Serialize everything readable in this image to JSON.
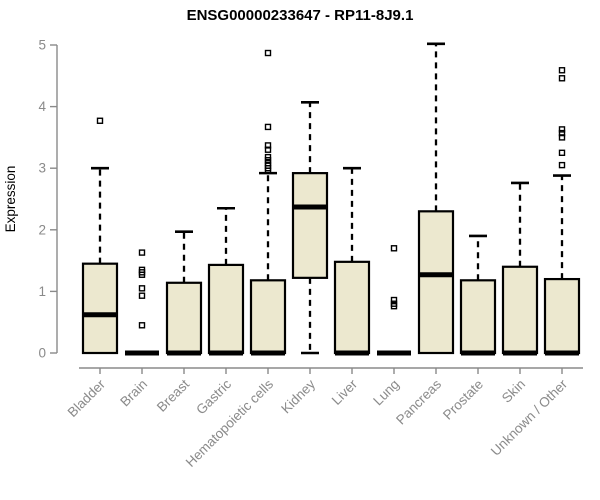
{
  "figure": {
    "background": "#ffffff"
  },
  "chart_data": {
    "type": "boxplot",
    "title": "ENSG00000233647 - RP11-8J9.1",
    "ylabel": "Expression",
    "xlabel": "",
    "ylim": [
      0,
      5
    ],
    "yticks": [
      0,
      1,
      2,
      3,
      4,
      5
    ],
    "grid": false,
    "legend_position": "none",
    "colors": {
      "box_fill": "#ece8cf",
      "box_stroke": "#000000",
      "median": "#000000",
      "whisker": "#000000",
      "outlier": "#000000",
      "axis": "#8a8a8a",
      "tick_label": "#8a8a8a",
      "title": "#000000"
    },
    "categories": [
      "Bladder",
      "Brain",
      "Breast",
      "Gastric",
      "Hematopoietic cells",
      "Kidney",
      "Liver",
      "Lung",
      "Pancreas",
      "Prostate",
      "Skin",
      "Unknown / Other"
    ],
    "series": [
      {
        "name": "Bladder",
        "q1": 0,
        "median": 0.62,
        "q3": 1.45,
        "whisker_low": 0,
        "whisker_high": 3.0,
        "outliers": [
          3.77
        ]
      },
      {
        "name": "Brain",
        "q1": 0,
        "median": 0,
        "q3": 0,
        "whisker_low": 0,
        "whisker_high": 0,
        "outliers": [
          1.63,
          1.35,
          1.31,
          1.27,
          1.05,
          0.93,
          0.45
        ]
      },
      {
        "name": "Breast",
        "q1": 0,
        "median": 0,
        "q3": 1.14,
        "whisker_low": 0,
        "whisker_high": 1.97,
        "outliers": []
      },
      {
        "name": "Gastric",
        "q1": 0,
        "median": 0,
        "q3": 1.43,
        "whisker_low": 0,
        "whisker_high": 2.35,
        "outliers": []
      },
      {
        "name": "Hematopoietic cells",
        "q1": 0,
        "median": 0,
        "q3": 1.18,
        "whisker_low": 0,
        "whisker_high": 2.92,
        "outliers": [
          2.96,
          3.0,
          3.04,
          3.08,
          3.13,
          3.18,
          3.3,
          3.37,
          3.67,
          4.87
        ]
      },
      {
        "name": "Kidney",
        "q1": 1.22,
        "median": 2.37,
        "q3": 2.92,
        "whisker_low": 0,
        "whisker_high": 4.07,
        "outliers": []
      },
      {
        "name": "Liver",
        "q1": 0,
        "median": 0,
        "q3": 1.48,
        "whisker_low": 0,
        "whisker_high": 3.0,
        "outliers": []
      },
      {
        "name": "Lung",
        "q1": 0,
        "median": 0,
        "q3": 0,
        "whisker_low": 0,
        "whisker_high": 0,
        "outliers": [
          1.7,
          0.86,
          0.8,
          0.76
        ]
      },
      {
        "name": "Pancreas",
        "q1": 0,
        "median": 1.27,
        "q3": 2.3,
        "whisker_low": 0,
        "whisker_high": 5.02,
        "outliers": []
      },
      {
        "name": "Prostate",
        "q1": 0,
        "median": 0,
        "q3": 1.18,
        "whisker_low": 0,
        "whisker_high": 1.9,
        "outliers": []
      },
      {
        "name": "Skin",
        "q1": 0,
        "median": 0,
        "q3": 1.4,
        "whisker_low": 0,
        "whisker_high": 2.76,
        "outliers": []
      },
      {
        "name": "Unknown / Other",
        "q1": 0,
        "median": 0,
        "q3": 1.2,
        "whisker_low": 0,
        "whisker_high": 2.88,
        "outliers": [
          3.05,
          3.25,
          3.5,
          3.57,
          3.63,
          4.46,
          4.59
        ]
      }
    ]
  }
}
